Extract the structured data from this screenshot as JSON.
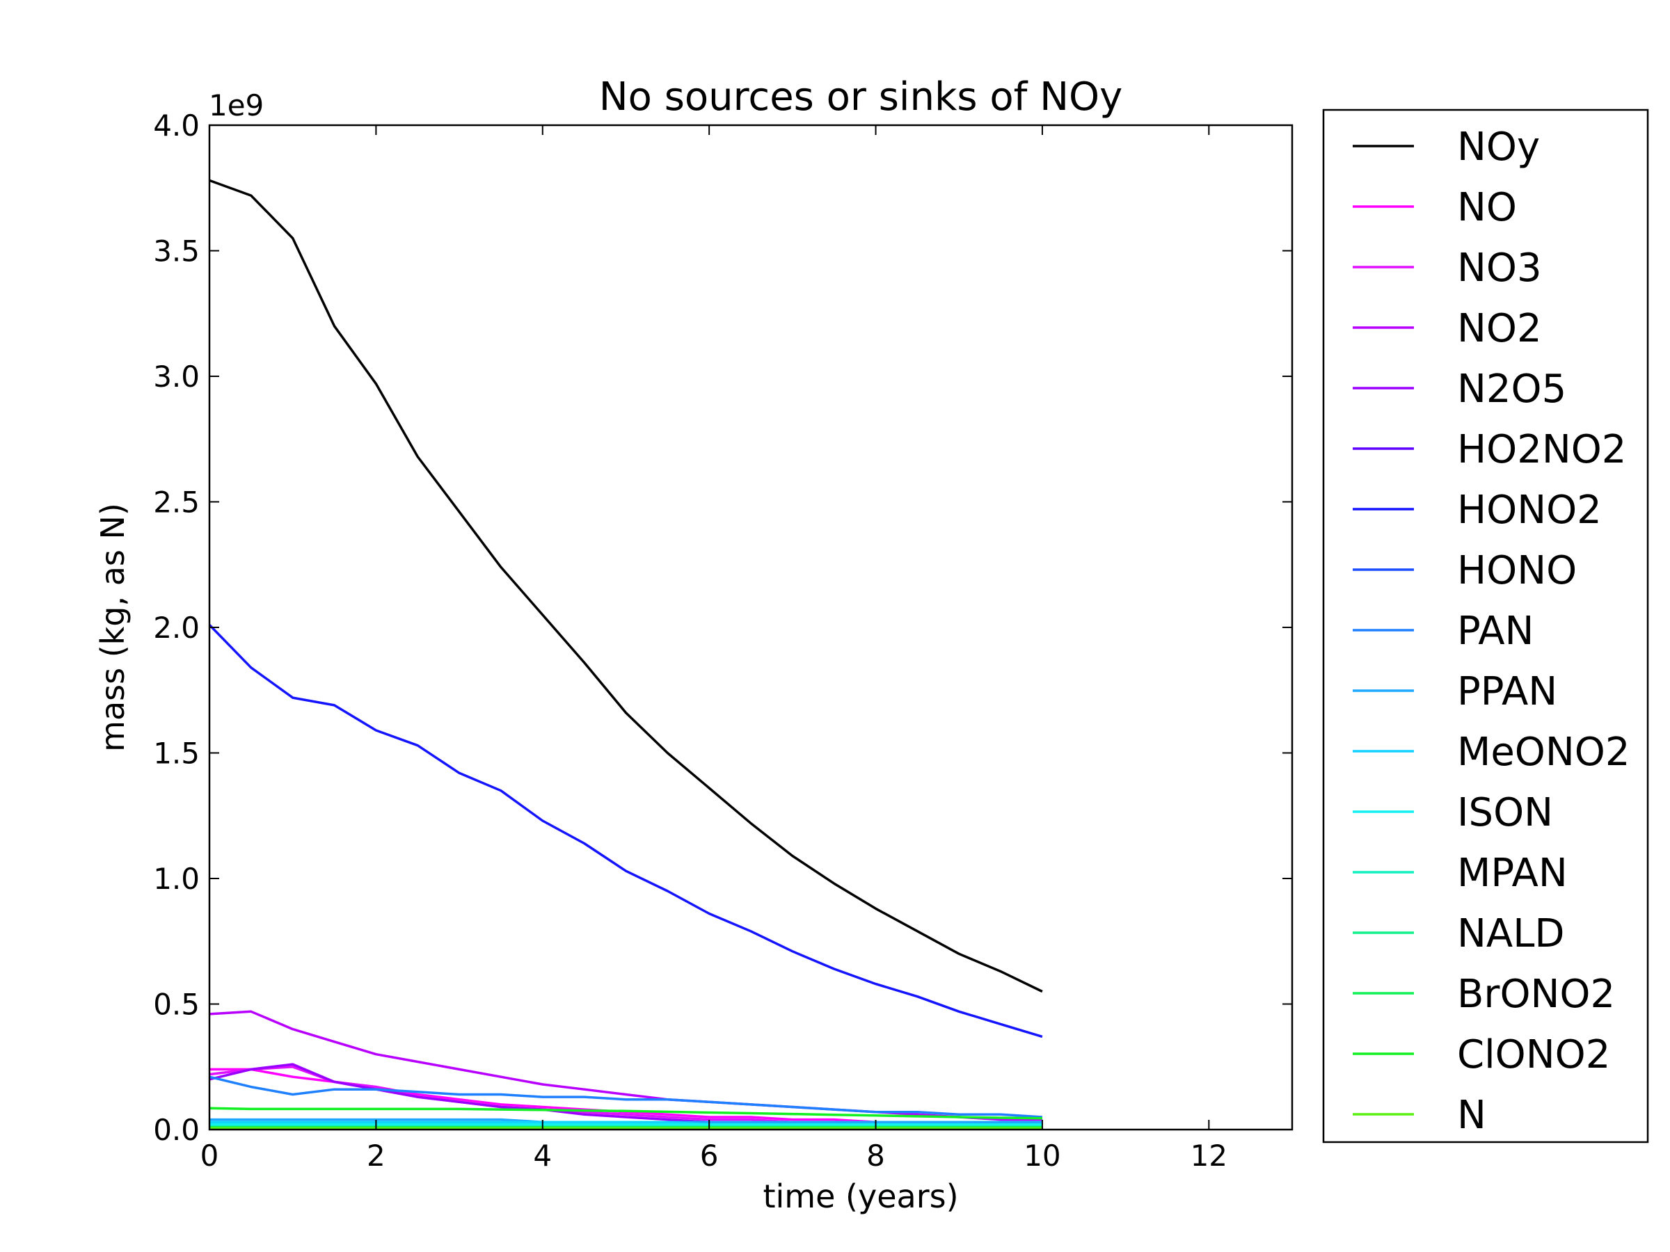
{
  "chart_data": {
    "type": "line",
    "title": "No sources or sinks of NOy",
    "xlabel": "time (years)",
    "ylabel": "mass (kg, as N)",
    "y_multiplier_label": "1e9",
    "xlim": [
      0,
      13
    ],
    "ylim": [
      0,
      4.0
    ],
    "x_ticks": [
      0,
      2,
      4,
      6,
      8,
      10,
      12
    ],
    "x_tick_labels": [
      "0",
      "2",
      "4",
      "6",
      "8",
      "10",
      "12"
    ],
    "y_ticks": [
      0,
      0.5,
      1.0,
      1.5,
      2.0,
      2.5,
      3.0,
      3.5,
      4.0
    ],
    "y_tick_labels": [
      "0.0",
      "0.5",
      "1.0",
      "1.5",
      "2.0",
      "2.5",
      "3.0",
      "3.5",
      "4.0"
    ],
    "grid": false,
    "legend_position": "right",
    "x": [
      0,
      0.5,
      1,
      1.5,
      2,
      2.5,
      3,
      3.5,
      4,
      4.5,
      5,
      5.5,
      6,
      6.5,
      7,
      7.5,
      8,
      8.5,
      9,
      9.5,
      10
    ],
    "series": [
      {
        "name": "NOy",
        "color": "#000000",
        "values": [
          3.78,
          3.72,
          3.55,
          3.2,
          2.97,
          2.68,
          2.46,
          2.24,
          2.05,
          1.86,
          1.66,
          1.5,
          1.36,
          1.22,
          1.09,
          0.98,
          0.88,
          0.79,
          0.7,
          0.63,
          0.55
        ]
      },
      {
        "name": "NO",
        "color": "#ff00ff",
        "values": [
          0.24,
          0.24,
          0.21,
          0.19,
          0.17,
          0.14,
          0.12,
          0.1,
          0.09,
          0.08,
          0.07,
          0.06,
          0.05,
          0.05,
          0.04,
          0.04,
          0.03,
          0.03,
          0.03,
          0.02,
          0.02
        ]
      },
      {
        "name": "NO3",
        "color": "#e011ff",
        "values": [
          0.22,
          0.24,
          0.25,
          0.19,
          0.17,
          0.13,
          0.11,
          0.09,
          0.08,
          0.07,
          0.06,
          0.05,
          0.04,
          0.04,
          0.03,
          0.03,
          0.03,
          0.02,
          0.02,
          0.02,
          0.02
        ]
      },
      {
        "name": "NO2",
        "color": "#b800ff",
        "values": [
          0.46,
          0.47,
          0.4,
          0.35,
          0.3,
          0.27,
          0.24,
          0.21,
          0.18,
          0.16,
          0.14,
          0.12,
          0.11,
          0.1,
          0.09,
          0.08,
          0.07,
          0.06,
          0.05,
          0.04,
          0.04
        ]
      },
      {
        "name": "N2O5",
        "color": "#9a00ff",
        "values": [
          0.2,
          0.24,
          0.26,
          0.19,
          0.16,
          0.13,
          0.11,
          0.09,
          0.08,
          0.06,
          0.05,
          0.04,
          0.03,
          0.03,
          0.02,
          0.02,
          0.02,
          0.02,
          0.02,
          0.01,
          0.01
        ]
      },
      {
        "name": "HO2NO2",
        "color": "#5d00ff",
        "values": [
          0.03,
          0.03,
          0.03,
          0.03,
          0.02,
          0.02,
          0.02,
          0.02,
          0.02,
          0.02,
          0.02,
          0.02,
          0.01,
          0.01,
          0.01,
          0.01,
          0.01,
          0.01,
          0.01,
          0.01,
          0.01
        ]
      },
      {
        "name": "HONO2",
        "color": "#1414ff",
        "values": [
          2.01,
          1.84,
          1.72,
          1.69,
          1.59,
          1.53,
          1.42,
          1.35,
          1.23,
          1.14,
          1.03,
          0.95,
          0.86,
          0.79,
          0.71,
          0.64,
          0.58,
          0.53,
          0.47,
          0.42,
          0.37
        ]
      },
      {
        "name": "HONO",
        "color": "#1a4cff",
        "values": [
          0.02,
          0.02,
          0.02,
          0.02,
          0.02,
          0.02,
          0.02,
          0.01,
          0.01,
          0.01,
          0.01,
          0.01,
          0.01,
          0.01,
          0.01,
          0.01,
          0.01,
          0.01,
          0.01,
          0.01,
          0.01
        ]
      },
      {
        "name": "PAN",
        "color": "#1e80ff",
        "values": [
          0.21,
          0.17,
          0.14,
          0.16,
          0.16,
          0.15,
          0.14,
          0.14,
          0.13,
          0.13,
          0.12,
          0.12,
          0.11,
          0.1,
          0.09,
          0.08,
          0.07,
          0.07,
          0.06,
          0.06,
          0.05
        ]
      },
      {
        "name": "PPAN",
        "color": "#1ea8ff",
        "values": [
          0.04,
          0.04,
          0.04,
          0.04,
          0.04,
          0.04,
          0.04,
          0.04,
          0.03,
          0.03,
          0.03,
          0.03,
          0.03,
          0.03,
          0.03,
          0.03,
          0.03,
          0.03,
          0.03,
          0.03,
          0.03
        ]
      },
      {
        "name": "MeONO2",
        "color": "#12d4ff",
        "values": [
          0.03,
          0.03,
          0.03,
          0.03,
          0.03,
          0.03,
          0.03,
          0.03,
          0.03,
          0.03,
          0.03,
          0.03,
          0.02,
          0.02,
          0.02,
          0.02,
          0.02,
          0.02,
          0.02,
          0.02,
          0.02
        ]
      },
      {
        "name": "ISON",
        "color": "#12f0f0",
        "values": [
          0.02,
          0.02,
          0.02,
          0.02,
          0.02,
          0.02,
          0.02,
          0.02,
          0.02,
          0.02,
          0.02,
          0.02,
          0.02,
          0.02,
          0.02,
          0.02,
          0.02,
          0.02,
          0.02,
          0.02,
          0.02
        ]
      },
      {
        "name": "MPAN",
        "color": "#12f0c0",
        "values": [
          0.01,
          0.01,
          0.01,
          0.01,
          0.01,
          0.01,
          0.01,
          0.01,
          0.01,
          0.01,
          0.01,
          0.01,
          0.01,
          0.01,
          0.01,
          0.01,
          0.01,
          0.01,
          0.01,
          0.01,
          0.01
        ]
      },
      {
        "name": "NALD",
        "color": "#12f08a",
        "values": [
          0.01,
          0.01,
          0.01,
          0.01,
          0.01,
          0.01,
          0.01,
          0.01,
          0.01,
          0.01,
          0.01,
          0.01,
          0.01,
          0.01,
          0.01,
          0.01,
          0.01,
          0.01,
          0.01,
          0.01,
          0.01
        ]
      },
      {
        "name": "BrONO2",
        "color": "#12f058",
        "values": [
          0.01,
          0.01,
          0.01,
          0.01,
          0.01,
          0.01,
          0.01,
          0.01,
          0.01,
          0.01,
          0.01,
          0.01,
          0.01,
          0.01,
          0.01,
          0.01,
          0.01,
          0.01,
          0.01,
          0.01,
          0.01
        ]
      },
      {
        "name": "ClONO2",
        "color": "#12f024",
        "values": [
          0.085,
          0.082,
          0.082,
          0.082,
          0.082,
          0.082,
          0.082,
          0.08,
          0.078,
          0.076,
          0.074,
          0.071,
          0.068,
          0.065,
          0.062,
          0.059,
          0.056,
          0.053,
          0.05,
          0.047,
          0.045
        ]
      },
      {
        "name": "N",
        "color": "#5af012",
        "values": [
          0.005,
          0.005,
          0.005,
          0.005,
          0.005,
          0.005,
          0.005,
          0.005,
          0.005,
          0.005,
          0.005,
          0.005,
          0.005,
          0.005,
          0.005,
          0.005,
          0.005,
          0.005,
          0.005,
          0.005,
          0.005
        ]
      }
    ]
  }
}
